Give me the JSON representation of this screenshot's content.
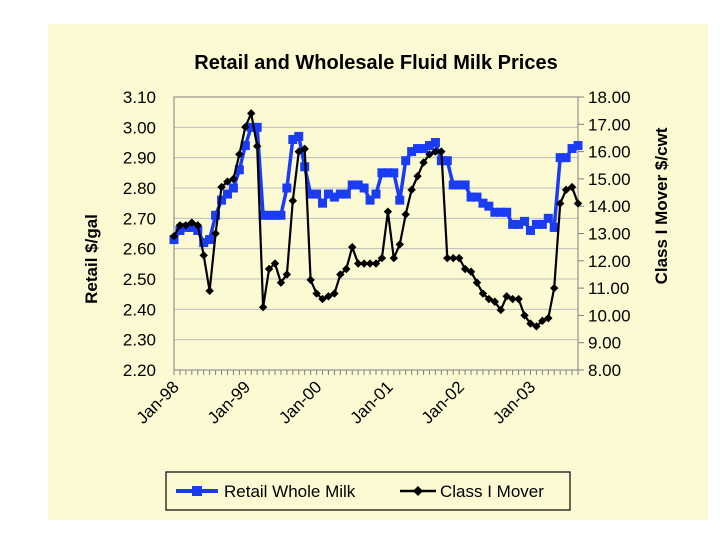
{
  "chart_data": {
    "type": "line",
    "title": "Retail and Wholesale Fluid Milk Prices",
    "y_left_label": "Retail $/gal",
    "y_right_label": "Class I Mover $/cwt",
    "y_left_ticks": [
      "3.10",
      "3.00",
      "2.90",
      "2.80",
      "2.70",
      "2.60",
      "2.50",
      "2.40",
      "2.30",
      "2.20"
    ],
    "y_right_ticks": [
      "18.00",
      "17.00",
      "16.00",
      "15.00",
      "14.00",
      "13.00",
      "12.00",
      "11.00",
      "10.00",
      "9.00",
      "8.00"
    ],
    "y_left_range": [
      2.2,
      3.1
    ],
    "y_right_range": [
      8.0,
      18.0
    ],
    "x_tick_labels": [
      "Jan-98",
      "Jan-99",
      "Jan-00",
      "Jan-01",
      "Jan-02",
      "Jan-03"
    ],
    "x_months": 68,
    "series": [
      {
        "name": "Retail Whole Milk",
        "color": "#1a3cf5",
        "axis": "left",
        "marker": "square",
        "values": [
          2.63,
          2.66,
          2.67,
          2.67,
          2.66,
          2.62,
          2.63,
          2.71,
          2.76,
          2.78,
          2.8,
          2.86,
          2.94,
          3.0,
          3.0,
          2.71,
          2.71,
          2.71,
          2.71,
          2.8,
          2.96,
          2.97,
          2.87,
          2.78,
          2.78,
          2.75,
          2.78,
          2.77,
          2.78,
          2.78,
          2.81,
          2.81,
          2.8,
          2.76,
          2.78,
          2.85,
          2.85,
          2.85,
          2.76,
          2.89,
          2.92,
          2.93,
          2.93,
          2.94,
          2.95,
          2.89,
          2.89,
          2.81,
          2.81,
          2.81,
          2.77,
          2.77,
          2.75,
          2.74,
          2.72,
          2.72,
          2.72,
          2.68,
          2.68,
          2.69,
          2.66,
          2.68,
          2.68,
          2.7,
          2.67,
          2.9,
          2.9,
          2.93,
          2.94
        ]
      },
      {
        "name": "Class I Mover",
        "color": "#000000",
        "axis": "right",
        "marker": "diamond",
        "values": [
          12.9,
          13.3,
          13.3,
          13.4,
          13.3,
          12.2,
          10.9,
          13.0,
          14.7,
          14.9,
          15.0,
          15.9,
          16.9,
          17.4,
          16.2,
          10.3,
          11.7,
          11.9,
          11.2,
          11.5,
          14.2,
          16.0,
          16.1,
          11.3,
          10.8,
          10.6,
          10.7,
          10.8,
          11.5,
          11.7,
          12.5,
          11.9,
          11.9,
          11.9,
          11.9,
          12.1,
          13.8,
          12.1,
          12.6,
          13.7,
          14.6,
          15.1,
          15.6,
          15.9,
          16.0,
          16.0,
          12.1,
          12.1,
          12.1,
          11.7,
          11.6,
          11.2,
          10.8,
          10.6,
          10.5,
          10.2,
          10.7,
          10.6,
          10.6,
          10.0,
          9.7,
          9.6,
          9.8,
          9.9,
          11.0,
          14.1,
          14.6,
          14.7,
          14.1
        ]
      }
    ]
  }
}
